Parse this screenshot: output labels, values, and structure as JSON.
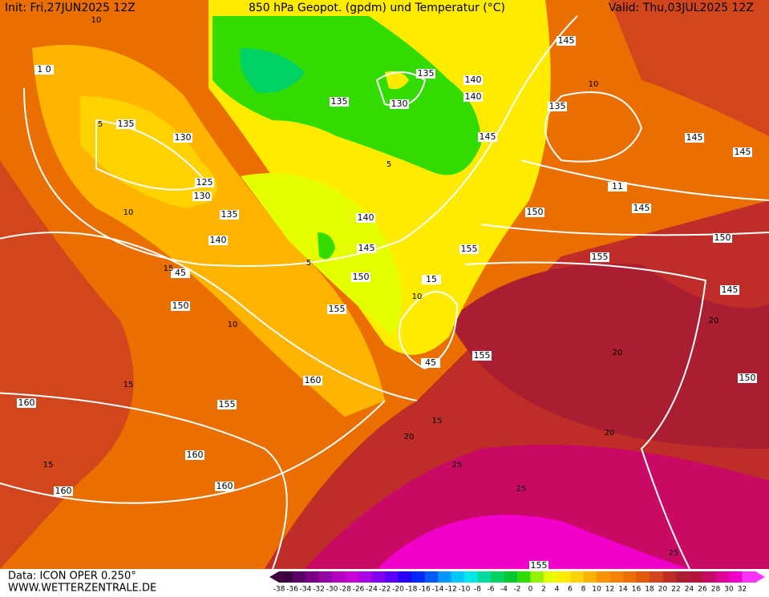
{
  "header": {
    "init": "Init: Fri,27JUN2025 12Z",
    "title": "850 hPa Geopot. (gpdm) und Temperatur (°C)",
    "valid": "Valid: Thu,03JUL2025 12Z"
  },
  "footer": {
    "data": "Data: ICON OPER 0.250°",
    "site": "WWW.WETTERZENTRALE.DE"
  },
  "color_scale": {
    "labels": [
      -38,
      -36,
      -34,
      -32,
      -30,
      -28,
      -26,
      -24,
      -22,
      -20,
      -18,
      -16,
      -14,
      -12,
      -10,
      -8,
      -6,
      -4,
      -2,
      0,
      2,
      4,
      6,
      8,
      10,
      12,
      14,
      16,
      18,
      20,
      22,
      24,
      26,
      28,
      30,
      32
    ],
    "colors": [
      "#3c0040",
      "#5a0064",
      "#780082",
      "#9600a0",
      "#b400be",
      "#c800d2",
      "#aa00e6",
      "#8200f0",
      "#5a00ff",
      "#2800ff",
      "#0028ff",
      "#005aff",
      "#0096ff",
      "#00c8ff",
      "#00e6e6",
      "#00dca0",
      "#00d264",
      "#00c832",
      "#32dc00",
      "#96f000",
      "#e6ff00",
      "#ffeb00",
      "#ffd200",
      "#ffb400",
      "#ff9600",
      "#f58200",
      "#eb6e00",
      "#e15a0a",
      "#d2461e",
      "#be2d28",
      "#aa1e32",
      "#b4143c",
      "#c80a64",
      "#dc0096",
      "#f000c8",
      "#ff32ff"
    ]
  },
  "geopotential_labels": [
    "1 0",
    "135",
    "130",
    "125",
    "130",
    "135",
    "140",
    "45",
    "150",
    "160",
    "155",
    "160",
    "160",
    "160",
    "160",
    "155",
    "150",
    "145",
    "140",
    "135",
    "130",
    "135",
    "140",
    "140",
    "145",
    "145",
    "135",
    "11",
    "145",
    "150",
    "155",
    "155",
    "150",
    "145",
    "145",
    "145",
    "150",
    "15",
    "155",
    "45",
    "155"
  ],
  "isotherm_labels": [
    "10",
    "5",
    "10",
    "15",
    "5",
    "10",
    "15",
    "10",
    "15",
    "20",
    "15",
    "20",
    "25",
    "20",
    "25",
    "10",
    "5",
    "20",
    "25"
  ]
}
